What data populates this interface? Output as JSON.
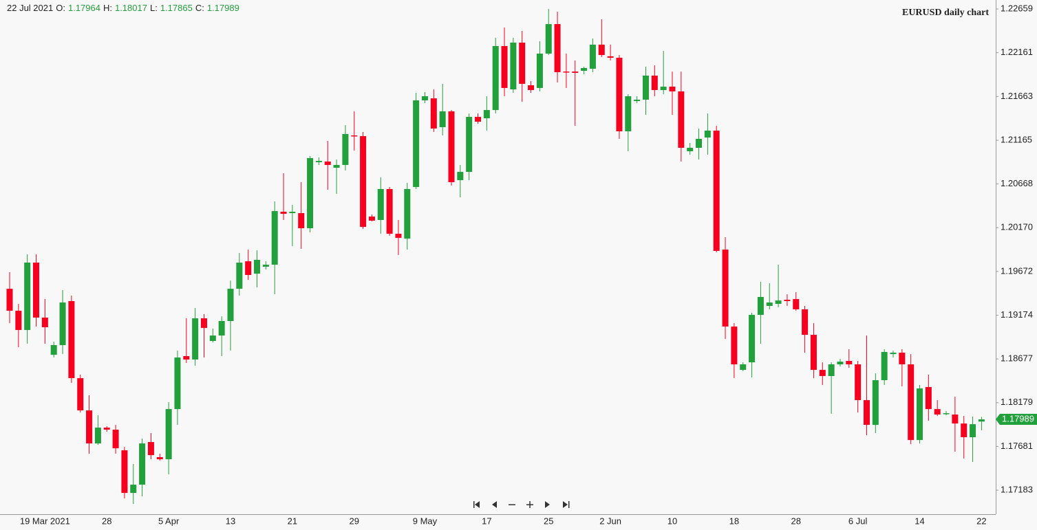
{
  "chart_data": {
    "type": "candlestick",
    "title": "EURUSD daily chart",
    "header": {
      "date": "22 Jul 2021",
      "labels": [
        "O:",
        "H:",
        "L:",
        "C:"
      ]
    },
    "up_color": "#22a03c",
    "down_color": "#f7001f",
    "categories": [
      null,
      null,
      null,
      null,
      "19 Mar 2021",
      null,
      null,
      null,
      null,
      null,
      null,
      "28",
      null,
      null,
      null,
      null,
      null,
      null,
      "5 Apr",
      null,
      null,
      null,
      null,
      null,
      null,
      "13",
      null,
      null,
      null,
      null,
      null,
      null,
      "21",
      null,
      null,
      null,
      null,
      null,
      null,
      "29",
      null,
      null,
      null,
      null,
      null,
      null,
      null,
      "9 May",
      null,
      null,
      null,
      null,
      null,
      null,
      "17",
      null,
      null,
      null,
      null,
      null,
      null,
      "25",
      null,
      null,
      null,
      null,
      null,
      null,
      "2 Jun",
      null,
      null,
      null,
      null,
      null,
      null,
      "10",
      null,
      null,
      null,
      null,
      null,
      null,
      "18",
      null,
      null,
      null,
      null,
      null,
      null,
      "28",
      null,
      null,
      null,
      null,
      null,
      null,
      "6 Jul",
      null,
      null,
      null,
      null,
      null,
      null,
      "14",
      null,
      null,
      null,
      null,
      null,
      null,
      "22"
    ],
    "open": [
      1.19475,
      1.19225,
      1.19006,
      1.19773,
      1.19147,
      1.18724,
      1.18834,
      1.19335,
      1.18458,
      1.18091,
      1.17715,
      1.17895,
      1.17872,
      1.17637,
      1.17152,
      1.17246,
      1.17731,
      1.17559,
      1.17535,
      1.18106,
      1.18709,
      1.1867,
      1.19139,
      1.18881,
      1.18943,
      1.19108,
      1.19475,
      1.19788,
      1.19647,
      1.19726,
      1.19749,
      1.20352,
      1.20336,
      1.20336,
      1.20164,
      1.20915,
      1.20923,
      1.20852,
      1.20884,
      1.2122,
      1.21212,
      1.20297,
      1.20258,
      1.2061,
      1.20101,
      1.20046,
      1.20633,
      1.21619,
      1.21642,
      1.21314,
      1.21494,
      1.20711,
      1.20805,
      1.21431,
      1.21415,
      1.21509,
      1.22237,
      1.21744,
      1.22276,
      1.21791,
      1.2176,
      1.22151,
      1.22487,
      1.21947,
      1.21947,
      1.21955,
      1.21979,
      1.22253,
      1.2212,
      1.22104,
      1.21267,
      1.21611,
      1.21627,
      1.21901,
      1.21736,
      1.21775,
      1.21721,
      1.2104,
      1.21079,
      1.21196,
      1.21275,
      1.19921,
      1.19045,
      1.18552,
      1.18638,
      1.19178,
      1.1928,
      1.19303,
      1.1935,
      1.19358,
      1.19241,
      1.18951,
      1.18552,
      1.18482,
      1.18615,
      1.18654,
      1.18615,
      1.18208,
      1.17926,
      1.18435,
      1.18732,
      1.18748,
      1.18615,
      1.17754,
      1.18357,
      1.18106,
      1.18052,
      1.18044,
      1.17942,
      1.17786,
      1.17964
    ],
    "high": [
      1.19663,
      1.19303,
      1.19867,
      1.19867,
      1.19358,
      1.18873,
      1.1946,
      1.19397,
      1.18498,
      1.18263,
      1.18036,
      1.17911,
      1.17926,
      1.17676,
      1.17481,
      1.1777,
      1.17833,
      1.17598,
      1.18185,
      1.18771,
      1.19139,
      1.19256,
      1.19186,
      1.19022,
      1.19162,
      1.19569,
      1.19882,
      1.19921,
      1.19913,
      1.19788,
      1.20469,
      1.2079,
      1.2043,
      1.20688,
      1.20985,
      1.2097,
      1.21157,
      1.20946,
      1.21337,
      1.21494,
      1.21259,
      1.2032,
      1.20743,
      1.20633,
      1.20258,
      1.2068,
      1.21705,
      1.21713,
      1.21744,
      1.21807,
      1.21509,
      1.20884,
      1.2147,
      1.2147,
      1.21666,
      1.22331,
      1.22448,
      1.22331,
      1.22409,
      1.21838,
      1.22292,
      1.22659,
      1.22628,
      1.22151,
      1.22073,
      1.22002,
      1.22323,
      1.22542,
      1.22253,
      1.22135,
      1.21689,
      1.21666,
      1.22002,
      1.22018,
      1.22182,
      1.21947,
      1.21947,
      1.21134,
      1.21298,
      1.2147,
      1.21329,
      1.20062,
      1.19084,
      1.18638,
      1.19202,
      1.19554,
      1.19538,
      1.19749,
      1.19413,
      1.19436,
      1.1928,
      1.19084,
      1.18638,
      1.18638,
      1.18677,
      1.18787,
      1.18654,
      1.18943,
      1.18513,
      1.18787,
      1.18771,
      1.18787,
      1.18732,
      1.1838,
      1.18498,
      1.18208,
      1.18083,
      1.18247,
      1.18028,
      1.1802,
      1.18017
    ],
    "low": [
      1.19084,
      1.1881,
      1.1885,
      1.19045,
      1.1885,
      1.18693,
      1.18732,
      1.18404,
      1.18067,
      1.17598,
      1.177,
      1.17848,
      1.17598,
      1.17089,
      1.17027,
      1.17113,
      1.17535,
      1.1752,
      1.17363,
      1.17926,
      1.18631,
      1.18599,
      1.18693,
      1.18865,
      1.18709,
      1.18771,
      1.19397,
      1.19577,
      1.19491,
      1.19694,
      1.19413,
      1.20258,
      1.1996,
      1.19929,
      1.20117,
      1.20884,
      1.20602,
      1.20555,
      1.20821,
      1.21048,
      1.20156,
      1.20242,
      1.20101,
      1.20078,
      1.19859,
      1.19921,
      1.2061,
      1.21588,
      1.21259,
      1.2122,
      1.20649,
      1.20516,
      1.20711,
      1.21353,
      1.21275,
      1.2147,
      1.21666,
      1.21705,
      1.21603,
      1.21705,
      1.21721,
      1.22135,
      1.21822,
      1.2176,
      1.21329,
      1.21916,
      1.2194,
      1.22112,
      1.22073,
      1.21181,
      1.2104,
      1.21588,
      1.21455,
      1.21666,
      1.21689,
      1.21455,
      1.20923,
      1.21001,
      1.20946,
      1.21001,
      1.1989,
      1.18904,
      1.18458,
      1.18537,
      1.18466,
      1.1885,
      1.19241,
      1.19264,
      1.1928,
      1.19225,
      1.18748,
      1.18458,
      1.1838,
      1.18052,
      1.18591,
      1.18576,
      1.18067,
      1.17809,
      1.17833,
      1.1838,
      1.18693,
      1.18365,
      1.17707,
      1.17715,
      1.17973,
      1.18028,
      1.18036,
      1.17621,
      1.17543,
      1.17504,
      1.17865
    ],
    "close": [
      1.19225,
      1.19006,
      1.19773,
      1.19147,
      1.19037,
      1.18834,
      1.19319,
      1.18458,
      1.18091,
      1.17715,
      1.17895,
      1.17872,
      1.1766,
      1.17152,
      1.17246,
      1.17715,
      1.17582,
      1.17535,
      1.18106,
      1.18693,
      1.1867,
      1.19139,
      1.19029,
      1.18943,
      1.19108,
      1.19475,
      1.19773,
      1.19632,
      1.19804,
      1.19749,
      1.20359,
      1.20328,
      1.20352,
      1.20164,
      1.20962,
      1.2093,
      1.20884,
      1.20884,
      1.21236,
      1.21212,
      1.20179,
      1.2025,
      1.2061,
      1.20101,
      1.20054,
      1.2061,
      1.21619,
      1.21666,
      1.21298,
      1.21494,
      1.20688,
      1.20805,
      1.21431,
      1.21376,
      1.21509,
      1.22237,
      1.2176,
      1.22276,
      1.21807,
      1.21736,
      1.22151,
      1.22487,
      1.2194,
      1.2194,
      1.21932,
      1.21987,
      1.22253,
      1.22135,
      1.22104,
      1.21267,
      1.21666,
      1.21627,
      1.21901,
      1.21736,
      1.21775,
      1.21721,
      1.21079,
      1.21079,
      1.21181,
      1.21275,
      1.19906,
      1.19045,
      1.18615,
      1.18615,
      1.19178,
      1.19382,
      1.19319,
      1.19342,
      1.19335,
      1.19241,
      1.18951,
      1.18552,
      1.18482,
      1.18615,
      1.18646,
      1.18615,
      1.18208,
      1.17926,
      1.18435,
      1.18756,
      1.18748,
      1.18615,
      1.17754,
      1.18341,
      1.18106,
      1.18044,
      1.18059,
      1.17942,
      1.17786,
      1.17934,
      1.17989
    ],
    "ylim": [
      1.1691,
      1.22761
    ],
    "yticks": [
      1.22659,
      1.22161,
      1.21663,
      1.21165,
      1.20668,
      {
        "value": 1.2017,
        "label": "1.20170"
      },
      1.19672,
      1.19174,
      1.18677,
      1.18179,
      1.17681,
      1.17183
    ]
  }
}
